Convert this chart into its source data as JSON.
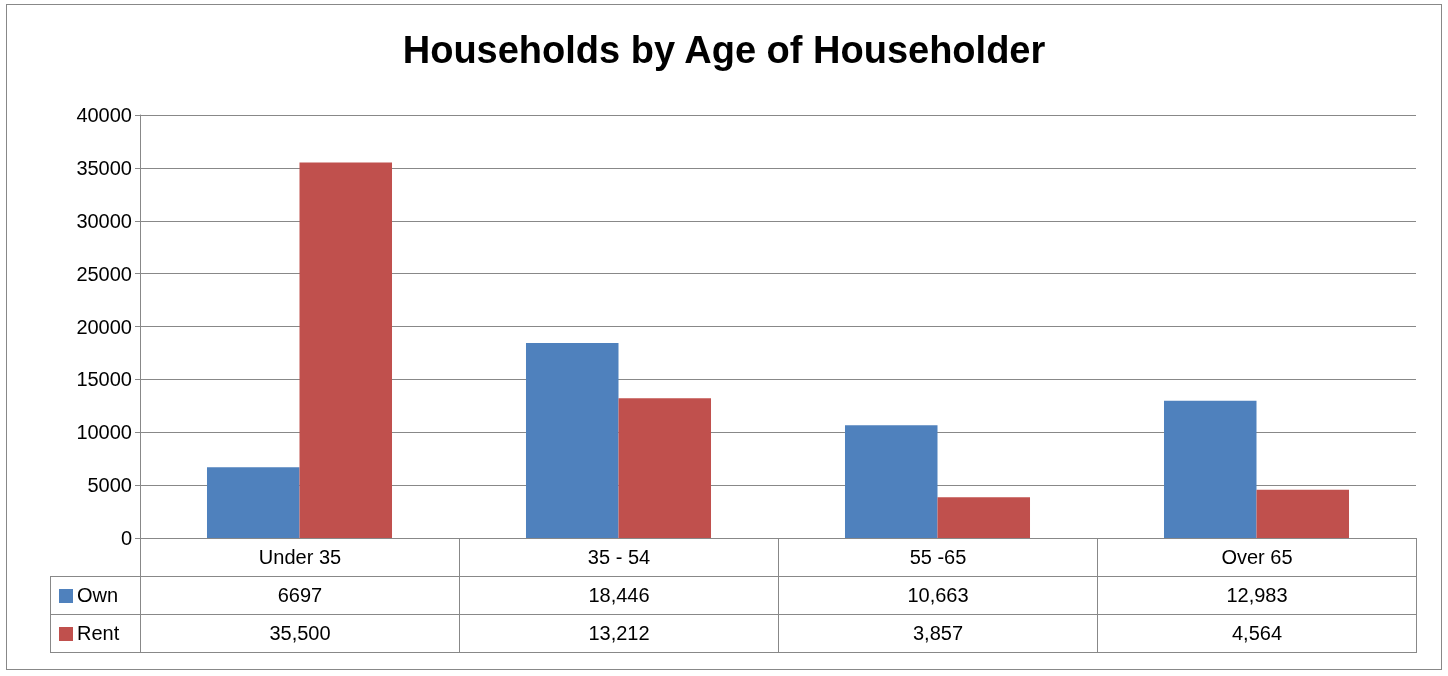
{
  "chart_data": {
    "type": "bar",
    "title": "Households by Age of Householder",
    "categories": [
      "Under 35",
      "35 - 54",
      "55 -65",
      "Over 65"
    ],
    "series": [
      {
        "name": "Own",
        "color": "#4f81bd",
        "values": [
          6697,
          18446,
          10663,
          12983
        ],
        "value_labels": [
          "6697",
          "18,446",
          "10,663",
          "12,983"
        ]
      },
      {
        "name": "Rent",
        "color": "#c0504d",
        "values": [
          35500,
          13212,
          3857,
          4564
        ],
        "value_labels": [
          "35,500",
          "13,212",
          "3,857",
          "4,564"
        ]
      }
    ],
    "ylim": [
      0,
      40000
    ],
    "yticks": [
      0,
      5000,
      10000,
      15000,
      20000,
      25000,
      30000,
      35000,
      40000
    ],
    "grid": "y",
    "legend": "bottom"
  }
}
